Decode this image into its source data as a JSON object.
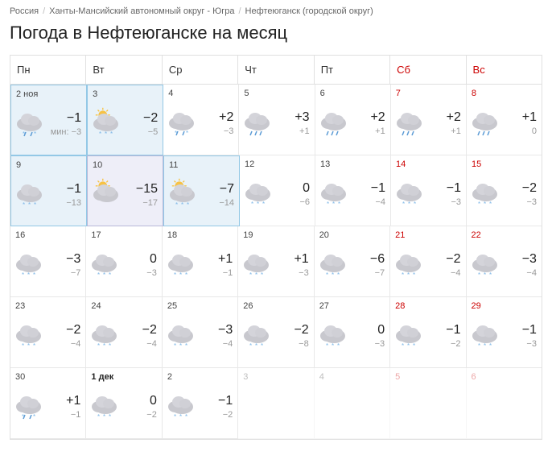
{
  "breadcrumb": [
    {
      "label": "Россия",
      "link": true
    },
    {
      "label": "Ханты-Мансийский автономный округ - Югра",
      "link": true
    },
    {
      "label": "Нефтеюганск (городской округ)",
      "link": true
    }
  ],
  "title": "Погода в Нефтеюганске на месяц",
  "weekdays": [
    {
      "label": "Пн",
      "weekend": false
    },
    {
      "label": "Вт",
      "weekend": false
    },
    {
      "label": "Ср",
      "weekend": false
    },
    {
      "label": "Чт",
      "weekend": false
    },
    {
      "label": "Пт",
      "weekend": false
    },
    {
      "label": "Сб",
      "weekend": true
    },
    {
      "label": "Вс",
      "weekend": true
    }
  ],
  "colors": {
    "cloud": "#c8c8ce",
    "cloud_light": "#d8d8de",
    "sun": "#f7c244",
    "rain": "#5b9bd5",
    "snow": "#7fb8e8",
    "weekend": "#cc0000"
  },
  "weeks": [
    [
      {
        "date": "2 ноя",
        "weekend": false,
        "icon": "snow-rain",
        "hi": "−1",
        "lo": "мин: −3",
        "highlight": "blue"
      },
      {
        "date": "3",
        "weekend": false,
        "icon": "sun-snow",
        "hi": "−2",
        "lo": "−5",
        "highlight": "blue"
      },
      {
        "date": "4",
        "weekend": false,
        "icon": "snow-rain",
        "hi": "+2",
        "lo": "−3"
      },
      {
        "date": "5",
        "weekend": false,
        "icon": "rain",
        "hi": "+3",
        "lo": "+1"
      },
      {
        "date": "6",
        "weekend": false,
        "icon": "rain",
        "hi": "+2",
        "lo": "+1"
      },
      {
        "date": "7",
        "weekend": true,
        "icon": "rain",
        "hi": "+2",
        "lo": "+1"
      },
      {
        "date": "8",
        "weekend": true,
        "icon": "rain",
        "hi": "+1",
        "lo": "0"
      }
    ],
    [
      {
        "date": "9",
        "weekend": false,
        "icon": "snow",
        "hi": "−1",
        "lo": "−13",
        "highlight": "blue"
      },
      {
        "date": "10",
        "weekend": false,
        "icon": "sun-cloud",
        "hi": "−15",
        "lo": "−17",
        "highlight": "purple"
      },
      {
        "date": "11",
        "weekend": false,
        "icon": "sun-snow",
        "hi": "−7",
        "lo": "−14",
        "highlight": "blue"
      },
      {
        "date": "12",
        "weekend": false,
        "icon": "snow",
        "hi": "0",
        "lo": "−6"
      },
      {
        "date": "13",
        "weekend": false,
        "icon": "snow",
        "hi": "−1",
        "lo": "−4"
      },
      {
        "date": "14",
        "weekend": true,
        "icon": "snow",
        "hi": "−1",
        "lo": "−3"
      },
      {
        "date": "15",
        "weekend": true,
        "icon": "snow",
        "hi": "−2",
        "lo": "−3"
      }
    ],
    [
      {
        "date": "16",
        "weekend": false,
        "icon": "snow",
        "hi": "−3",
        "lo": "−7"
      },
      {
        "date": "17",
        "weekend": false,
        "icon": "snow",
        "hi": "0",
        "lo": "−3"
      },
      {
        "date": "18",
        "weekend": false,
        "icon": "snow",
        "hi": "+1",
        "lo": "−1"
      },
      {
        "date": "19",
        "weekend": false,
        "icon": "snow",
        "hi": "+1",
        "lo": "−3"
      },
      {
        "date": "20",
        "weekend": false,
        "icon": "snow",
        "hi": "−6",
        "lo": "−7"
      },
      {
        "date": "21",
        "weekend": true,
        "icon": "snow",
        "hi": "−2",
        "lo": "−4"
      },
      {
        "date": "22",
        "weekend": true,
        "icon": "snow",
        "hi": "−3",
        "lo": "−4"
      }
    ],
    [
      {
        "date": "23",
        "weekend": false,
        "icon": "snow",
        "hi": "−2",
        "lo": "−4"
      },
      {
        "date": "24",
        "weekend": false,
        "icon": "snow",
        "hi": "−2",
        "lo": "−4"
      },
      {
        "date": "25",
        "weekend": false,
        "icon": "snow",
        "hi": "−3",
        "lo": "−4"
      },
      {
        "date": "26",
        "weekend": false,
        "icon": "snow",
        "hi": "−2",
        "lo": "−8"
      },
      {
        "date": "27",
        "weekend": false,
        "icon": "snow",
        "hi": "0",
        "lo": "−3"
      },
      {
        "date": "28",
        "weekend": true,
        "icon": "snow",
        "hi": "−1",
        "lo": "−2"
      },
      {
        "date": "29",
        "weekend": true,
        "icon": "snow",
        "hi": "−1",
        "lo": "−3"
      }
    ],
    [
      {
        "date": "30",
        "weekend": false,
        "icon": "snow-rain",
        "hi": "+1",
        "lo": "−1"
      },
      {
        "date": "1 дек",
        "weekend": false,
        "icon": "snow",
        "hi": "0",
        "lo": "−2",
        "bold": true
      },
      {
        "date": "2",
        "weekend": false,
        "icon": "snow",
        "hi": "−1",
        "lo": "−2"
      },
      {
        "date": "3",
        "weekend": false,
        "faded": true
      },
      {
        "date": "4",
        "weekend": false,
        "faded": true
      },
      {
        "date": "5",
        "weekend": true,
        "faded": true
      },
      {
        "date": "6",
        "weekend": true,
        "faded": true
      }
    ]
  ]
}
